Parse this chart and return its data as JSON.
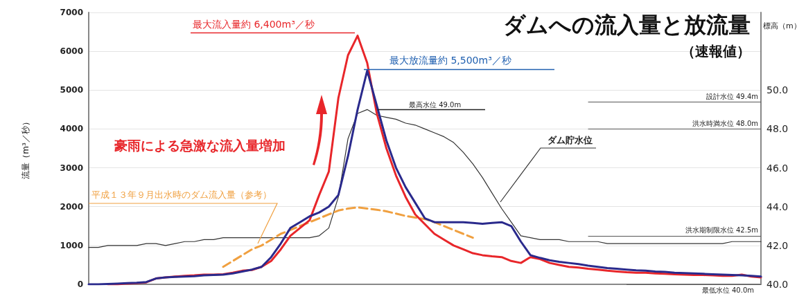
{
  "chart_data": {
    "type": "line",
    "title": "ダムへの流入量と放流量",
    "subtitle": "（速報値）",
    "ylabel": "流量（m³／秒）",
    "y2label": "標高（m）",
    "annotations": [
      "最大流入量約 6,400m³／秒",
      "最大放流量約 5,500m³／秒",
      "豪雨による急激な流入量増加",
      "最高水位 49.0m"
    ],
    "categories": [
      null,
      null,
      null,
      null,
      null,
      null,
      null,
      null,
      null,
      null,
      null,
      null,
      null,
      null,
      null,
      null,
      null,
      null,
      null,
      null,
      null,
      null,
      null,
      null,
      null,
      null,
      null,
      null,
      null,
      null,
      null,
      null,
      null,
      null,
      null,
      null,
      null,
      null,
      null,
      null,
      null,
      null,
      null,
      null,
      null,
      null,
      null,
      null,
      null,
      null,
      null,
      null,
      null,
      null,
      null,
      null,
      null,
      null,
      null,
      null,
      null,
      null,
      null,
      null,
      null,
      null,
      null,
      null,
      null,
      null,
      null
    ],
    "series": [
      {
        "color": "#333333",
        "name": "ダム貯水位",
        "axis": "y2",
        "values": [
          41.9,
          41.9,
          42.0,
          42.0,
          42.0,
          42.0,
          42.1,
          42.1,
          42.0,
          42.1,
          42.2,
          42.2,
          42.3,
          42.3,
          42.4,
          42.4,
          42.4,
          42.4,
          42.4,
          42.4,
          42.4,
          42.4,
          42.4,
          42.4,
          42.5,
          42.9,
          44.5,
          47.5,
          48.8,
          49.0,
          48.7,
          48.6,
          48.5,
          48.3,
          48.2,
          48.0,
          47.8,
          47.6,
          47.3,
          46.8,
          46.2,
          45.5,
          44.7,
          43.9,
          43.2,
          42.5,
          42.4,
          42.3,
          42.3,
          42.3,
          42.2,
          42.2,
          42.2,
          42.2,
          42.1,
          42.1,
          42.1,
          42.1,
          42.1,
          42.1,
          42.1,
          42.1,
          42.1,
          42.1,
          42.1,
          42.1,
          42.1,
          42.2,
          42.2,
          42.2,
          42.2
        ]
      },
      {
        "color": "#f0a040",
        "name": "平成１３年９月出水時のダム流入量（参考）",
        "line_style": "dashed",
        "values": [
          null,
          null,
          null,
          null,
          null,
          null,
          null,
          null,
          null,
          null,
          null,
          null,
          null,
          null,
          450,
          600,
          750,
          900,
          1000,
          1150,
          1300,
          1400,
          1500,
          1600,
          1700,
          1800,
          1900,
          1950,
          1980,
          1950,
          1920,
          1880,
          1820,
          1760,
          1720,
          1680,
          1600,
          1500,
          1400,
          1300,
          1200,
          null,
          null,
          null,
          null,
          null,
          null,
          null,
          null,
          null,
          null,
          null,
          null,
          null,
          null,
          null,
          null,
          null,
          null,
          null,
          null,
          null,
          null,
          null,
          null,
          null,
          null,
          null,
          null,
          null,
          null
        ]
      },
      {
        "color": "#e8262a",
        "values": [
          null,
          null,
          0,
          0,
          20,
          30,
          50,
          150,
          180,
          200,
          220,
          230,
          250,
          250,
          260,
          300,
          350,
          370,
          450,
          600,
          900,
          1250,
          1450,
          1650,
          2300,
          2900,
          4800,
          5900,
          6400,
          5700,
          4400,
          3500,
          2800,
          2250,
          1800,
          1550,
          1300,
          1150,
          1000,
          900,
          800,
          750,
          720,
          700,
          600,
          550,
          700,
          650,
          550,
          500,
          450,
          430,
          400,
          380,
          350,
          330,
          310,
          300,
          300,
          280,
          270,
          260,
          250,
          240,
          240,
          230,
          220,
          220,
          250,
          200,
          180
        ]
      },
      {
        "color": "#2a2a8c",
        "values": [
          0,
          0,
          10,
          20,
          30,
          40,
          60,
          150,
          180,
          190,
          200,
          210,
          230,
          240,
          250,
          280,
          330,
          380,
          450,
          700,
          1050,
          1450,
          1600,
          1750,
          1850,
          2000,
          2300,
          3300,
          4500,
          5500,
          4600,
          3700,
          3000,
          2500,
          2100,
          1700,
          1600,
          1600,
          1600,
          1600,
          1580,
          1560,
          1580,
          1600,
          1500,
          1100,
          750,
          680,
          620,
          580,
          550,
          520,
          480,
          450,
          420,
          400,
          380,
          360,
          350,
          330,
          320,
          300,
          290,
          280,
          270,
          260,
          250,
          240,
          230,
          220,
          200
        ]
      }
    ],
    "ylim": [
      0,
      7000
    ],
    "yticks": [
      0,
      1000,
      2000,
      3000,
      4000,
      5000,
      6000,
      7000
    ],
    "y2lim": [
      40,
      54
    ],
    "y2ticks": [
      {
        "value": 40,
        "label": "40.0"
      },
      {
        "value": 42,
        "label": "42.0"
      },
      {
        "value": 44,
        "label": "44.0"
      },
      {
        "value": 46,
        "label": "46.0"
      },
      {
        "value": 48,
        "label": "48.0"
      },
      {
        "value": 50,
        "label": "50.0"
      }
    ],
    "ref_lines": [
      {
        "axis": "y2",
        "value": 49.4,
        "label": "設計水位 49.4m"
      },
      {
        "axis": "y2",
        "value": 48.0,
        "label": "洪水時満水位 48.0m"
      },
      {
        "axis": "y2",
        "value": 42.5,
        "label": "洪水期制限水位 42.5m"
      },
      {
        "axis": "y2",
        "value": 40.0,
        "label": "最低水位 40.0m"
      }
    ],
    "grid": "y",
    "legend": false,
    "marker": "none",
    "line_style": "solid"
  }
}
